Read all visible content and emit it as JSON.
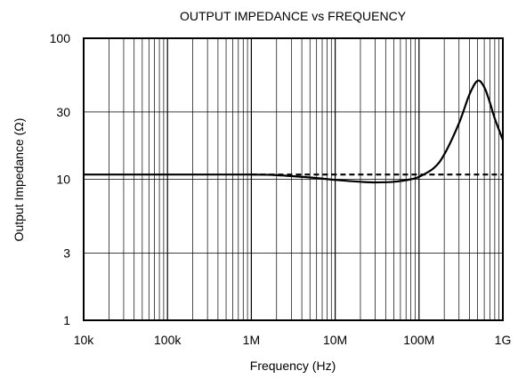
{
  "chart_data": {
    "type": "line",
    "title": "OUTPUT IMPEDANCE vs FREQUENCY",
    "xlabel": "Frequency (Hz)",
    "ylabel": "Output Impedance (Ω)",
    "x_scale": "log",
    "y_scale": "log",
    "xlim": [
      10000,
      1000000000
    ],
    "ylim": [
      1,
      100
    ],
    "x_ticks": [
      {
        "value": 10000,
        "label": "10k"
      },
      {
        "value": 100000,
        "label": "100k"
      },
      {
        "value": 1000000,
        "label": "1M"
      },
      {
        "value": 10000000,
        "label": "10M"
      },
      {
        "value": 100000000,
        "label": "100M"
      },
      {
        "value": 1000000000,
        "label": "1G"
      }
    ],
    "y_ticks": [
      {
        "value": 1,
        "label": "1"
      },
      {
        "value": 3,
        "label": "3"
      },
      {
        "value": 10,
        "label": "10"
      },
      {
        "value": 30,
        "label": "30"
      },
      {
        "value": 100,
        "label": "100"
      }
    ],
    "grid": true,
    "series": [
      {
        "style": "solid",
        "color": "#000000",
        "x": [
          10000,
          100000,
          1000000,
          2000000,
          5000000,
          10000000,
          20000000,
          30000000,
          50000000,
          80000000,
          100000000,
          150000000,
          200000000,
          300000000,
          400000000,
          500000000,
          600000000,
          700000000,
          800000000,
          1000000000
        ],
        "y": [
          10.8,
          10.8,
          10.8,
          10.7,
          10.3,
          9.9,
          9.6,
          9.5,
          9.6,
          10.0,
          10.4,
          12.0,
          15.0,
          25.0,
          40.0,
          50.0,
          45.0,
          35.0,
          27.0,
          19.0
        ]
      },
      {
        "style": "dashed",
        "color": "#000000",
        "x": [
          1000000,
          10000000,
          100000000,
          1000000000
        ],
        "y": [
          10.8,
          10.8,
          10.8,
          10.8
        ]
      }
    ]
  }
}
